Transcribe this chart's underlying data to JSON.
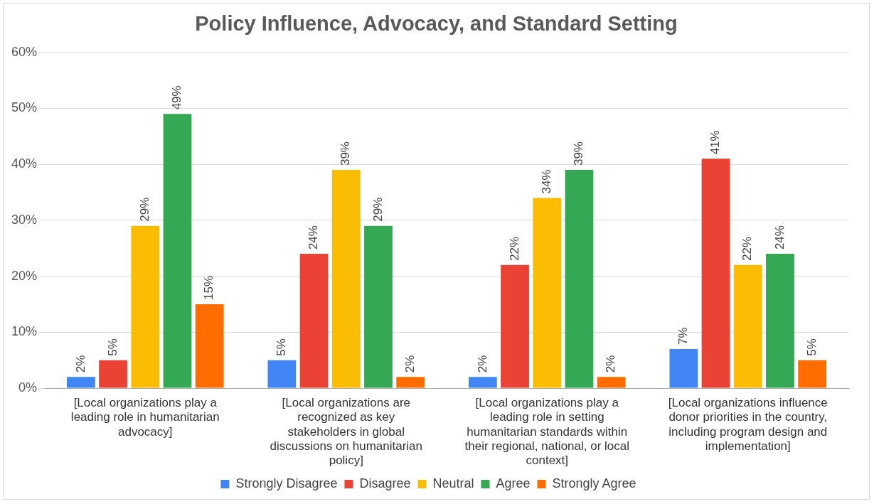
{
  "chart_data": {
    "type": "bar",
    "title": "Policy Influence, Advocacy, and Standard Setting",
    "categories": [
      "[Local organizations play a leading role in humanitarian advocacy]",
      "[Local organizations are recognized as key stakeholders in global discussions on humanitarian policy]",
      "[Local organizations play a leading role in setting humanitarian standards within their regional, national, or local context]",
      "[Local organizations influence donor priorities in the country, including program design and implementation]"
    ],
    "series": [
      {
        "name": "Strongly Disagree",
        "color": "#4285f4",
        "values": [
          2,
          5,
          2,
          7
        ],
        "value_labels": [
          "2%",
          "5%",
          "2%",
          "7%"
        ]
      },
      {
        "name": "Disagree",
        "color": "#ea4335",
        "values": [
          5,
          24,
          22,
          41
        ],
        "value_labels": [
          "5%",
          "24%",
          "22%",
          "41%"
        ]
      },
      {
        "name": "Neutral",
        "color": "#fbbc04",
        "values": [
          29,
          39,
          34,
          22
        ],
        "value_labels": [
          "29%",
          "39%",
          "34%",
          "22%"
        ]
      },
      {
        "name": "Agree",
        "color": "#34a853",
        "values": [
          49,
          29,
          39,
          24
        ],
        "value_labels": [
          "49%",
          "29%",
          "39%",
          "24%"
        ]
      },
      {
        "name": "Strongly Agree",
        "color": "#ff6d01",
        "values": [
          15,
          2,
          2,
          5
        ],
        "value_labels": [
          "15%",
          "2%",
          "2%",
          "5%"
        ]
      }
    ],
    "ylim": [
      0,
      60
    ],
    "yticks": [
      {
        "value": 0,
        "label": "0%"
      },
      {
        "value": 10,
        "label": "10%"
      },
      {
        "value": 20,
        "label": "20%"
      },
      {
        "value": 30,
        "label": "30%"
      },
      {
        "value": 40,
        "label": "40%"
      },
      {
        "value": 50,
        "label": "50%"
      },
      {
        "value": 60,
        "label": "60%"
      }
    ],
    "grid": "y",
    "legend": "bottom"
  }
}
